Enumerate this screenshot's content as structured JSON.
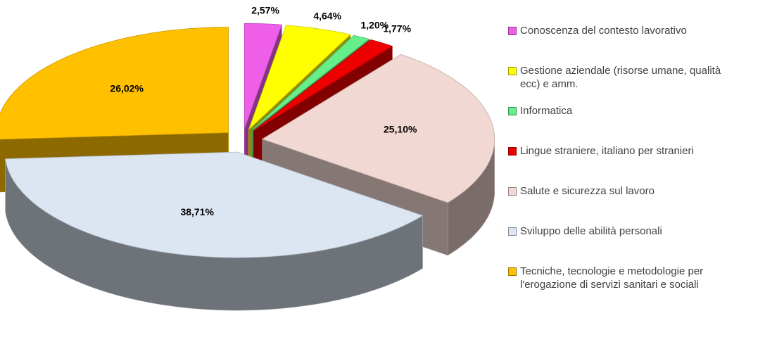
{
  "chart_data": {
    "type": "pie",
    "categories": [
      "Conoscenza del contesto lavorativo",
      "Gestione aziendale (risorse umane, qualità ecc) e amm.",
      "Informatica",
      "Lingue straniere, italiano per stranieri",
      "Salute e sicurezza sul lavoro",
      "Sviluppo delle abilità personali",
      "Tecniche, tecnologie e metodologie per l'erogazione di servizi sanitari e sociali"
    ],
    "values": [
      2.57,
      4.64,
      1.2,
      1.77,
      25.1,
      38.71,
      26.02
    ],
    "value_labels": [
      "2,57%",
      "4,64%",
      "1,20%",
      "1,77%",
      "25,10%",
      "38,71%",
      "26,02%"
    ],
    "colors": [
      "#ee5ee8",
      "#ffff00",
      "#66ee88",
      "#ee0000",
      "#f2d8d2",
      "#dce6f2",
      "#ffc000"
    ],
    "legend": "right"
  }
}
